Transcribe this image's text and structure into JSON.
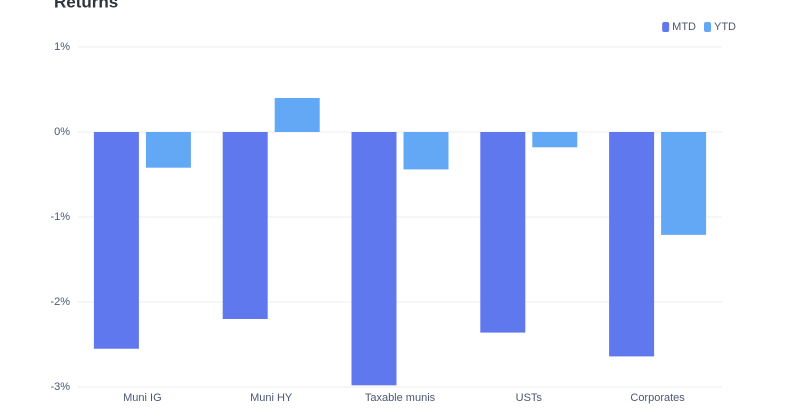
{
  "chart_data": {
    "type": "bar",
    "title": "Returns",
    "categories": [
      "Muni IG",
      "Muni HY",
      "Taxable munis",
      "USTs",
      "Corporates"
    ],
    "series": [
      {
        "name": "MTD",
        "color": "#6078ee",
        "values": [
          -2.55,
          -2.2,
          -2.98,
          -2.36,
          -2.64
        ]
      },
      {
        "name": "YTD",
        "color": "#62a8f4",
        "values": [
          -0.42,
          0.4,
          -0.44,
          -0.18,
          -1.21
        ]
      }
    ],
    "ylim": [
      -3,
      1
    ],
    "yticks": [
      {
        "value": 1,
        "label": "1%"
      },
      {
        "value": 0,
        "label": "0%"
      },
      {
        "value": -1,
        "label": "-1%"
      },
      {
        "value": -2,
        "label": "-2%"
      },
      {
        "value": -3,
        "label": "-3%"
      }
    ],
    "grid": true,
    "legend": "top-right"
  }
}
